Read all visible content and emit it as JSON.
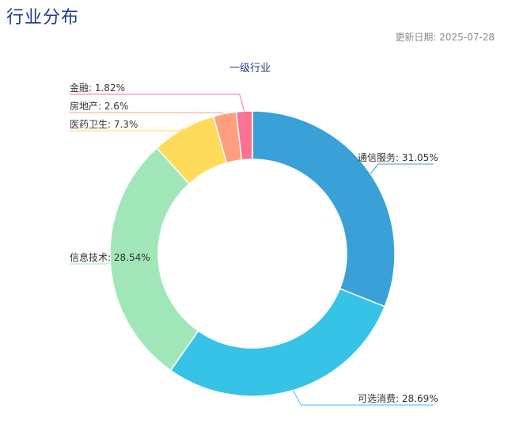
{
  "page": {
    "title": "行业分布",
    "update_date": "更新日期: 2025-07-28"
  },
  "chart_data": {
    "type": "pie",
    "title": "一级行业",
    "donut": true,
    "slices": [
      {
        "label": "通信服务",
        "value": 31.05,
        "display": "通信服务: 31.05%",
        "color": "#3aa0d8"
      },
      {
        "label": "可选消费",
        "value": 28.69,
        "display": "可选消费: 28.69%",
        "color": "#36c3e6"
      },
      {
        "label": "信息技术",
        "value": 28.54,
        "display": "信息技术: 28.54%",
        "color": "#a1e6b9"
      },
      {
        "label": "医药卫生",
        "value": 7.3,
        "display": "医药卫生: 7.3%",
        "color": "#fedb5b"
      },
      {
        "label": "房地产",
        "value": 2.6,
        "display": "房地产: 2.6%",
        "color": "#ff9f7f"
      },
      {
        "label": "金融",
        "value": 1.82,
        "display": "金融: 1.82%",
        "color": "#fb7293"
      }
    ]
  }
}
